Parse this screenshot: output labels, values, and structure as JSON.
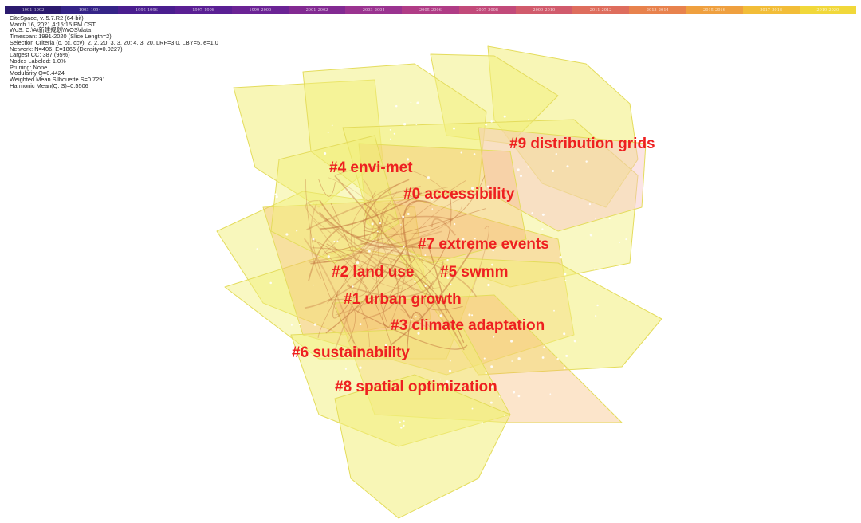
{
  "timeline": {
    "slices": [
      "1991-1992",
      "1993-1994",
      "1995-1996",
      "1997-1998",
      "1999-2000",
      "2001-2002",
      "2003-2004",
      "2005-2006",
      "2007-2008",
      "2009-2010",
      "2011-2012",
      "2013-2014",
      "2015-2016",
      "2017-2018",
      "2019-2020"
    ],
    "colors": [
      "#2b1a6e",
      "#352487",
      "#4a1e8f",
      "#5a1f94",
      "#6b2395",
      "#822a92",
      "#9a3390",
      "#b03c86",
      "#c24a7a",
      "#d15b6c",
      "#de6d5d",
      "#e8824d",
      "#efa03f",
      "#f2bd38",
      "#f1d83a"
    ]
  },
  "info": {
    "lines": [
      "CiteSpace, v. 5.7.R2 (64-bit)",
      "March 16, 2021 4:15:15 PM CST",
      "WoS: C:\\A\\新建规划\\WOS\\data",
      "Timespan: 1991-2020 (Slice Length=2)",
      "Selection Criteria (c, cc, ccv): 2, 2, 20; 3, 3, 20; 4, 3, 20, LRF=3.0, LBY=5, e=1.0",
      "Network: N=406, E=1866 (Density=0.0227)",
      "Largest CC: 387 (95%)",
      "Nodes Labeled: 1.0%",
      "Pruning: None",
      "Modularity Q=0.4424",
      "Weighted Mean Silhouette S=0.7291",
      "Harmonic Mean(Q, S)=0.5506"
    ]
  },
  "clusters": [
    {
      "id": 0,
      "label": "#0 accessibility"
    },
    {
      "id": 1,
      "label": "#1 urban growth"
    },
    {
      "id": 2,
      "label": "#2 land use"
    },
    {
      "id": 3,
      "label": "#3 climate adaptation"
    },
    {
      "id": 4,
      "label": "#4 envi-met"
    },
    {
      "id": 5,
      "label": "#5 swmm"
    },
    {
      "id": 6,
      "label": "#6 sustainability"
    },
    {
      "id": 7,
      "label": "#7 extreme events"
    },
    {
      "id": 8,
      "label": "#8 spatial optimization"
    },
    {
      "id": 9,
      "label": "#9 distribution grids"
    }
  ],
  "colors": {
    "label": "#ee2020",
    "hull_fill": "#f2ef7a",
    "hull_stroke": "#e4dc5c",
    "hull_orange": "#f5b46a",
    "hull_pink": "#f6c4c4",
    "link": "#c2743e",
    "node": "#ffffff"
  }
}
